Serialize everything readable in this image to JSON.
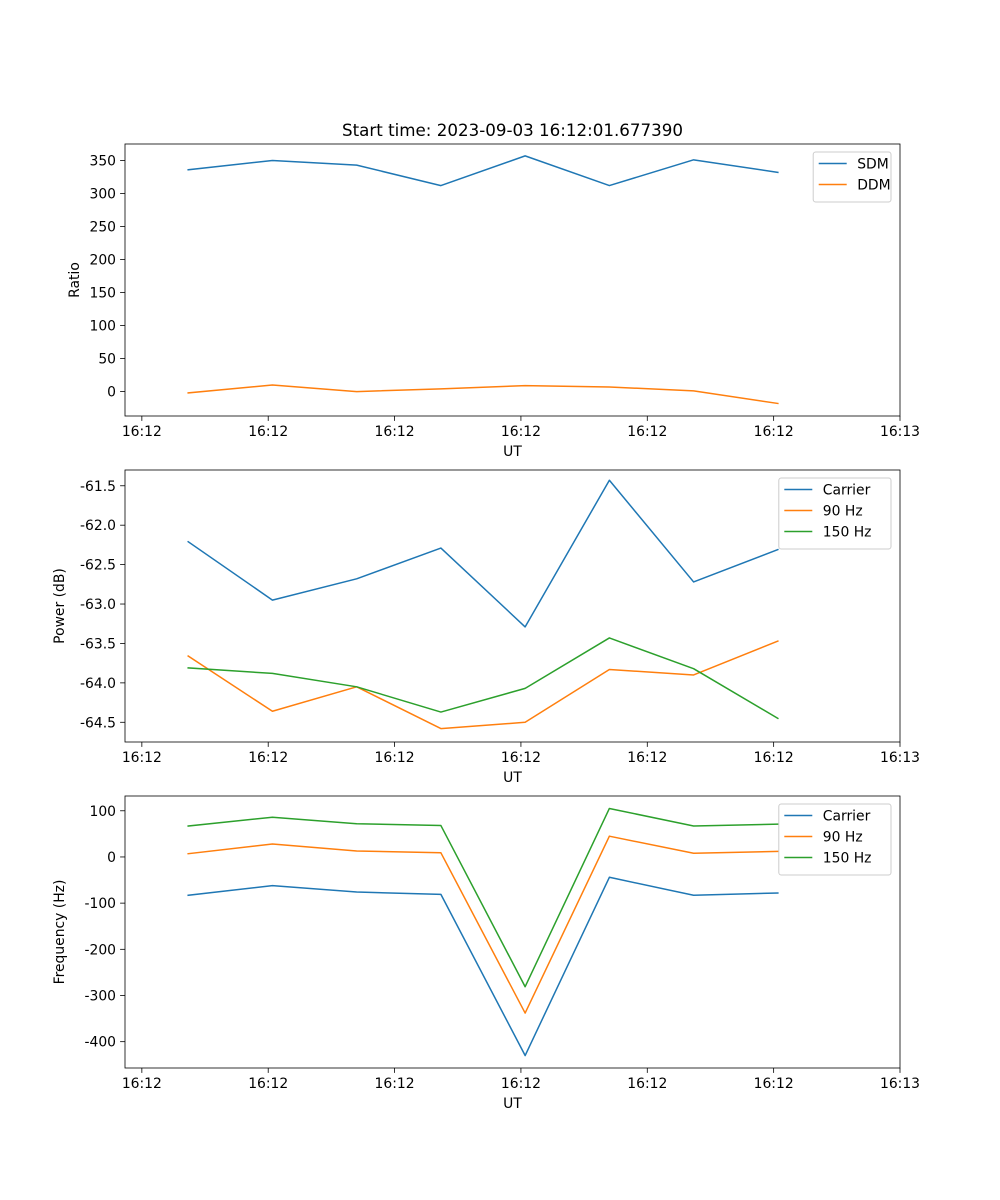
{
  "title": "Start time: 2023-09-03 16:12:01.677390",
  "colors": {
    "blue": "#1f77b4",
    "orange": "#ff7f0e",
    "green": "#2ca02c"
  },
  "chart_data": [
    {
      "type": "line",
      "title": "Start time: 2023-09-03 16:12:01.677390",
      "xlabel": "UT",
      "ylabel": "Ratio",
      "x": [
        0.75,
        1.75,
        2.75,
        3.75,
        4.75,
        5.75,
        6.75,
        7.75
      ],
      "xlim": [
        0,
        9.2
      ],
      "xticks": [
        0.2,
        1.7,
        3.2,
        4.7,
        6.2,
        7.7,
        9.2
      ],
      "xtick_labels": [
        "16:12",
        "16:12",
        "16:12",
        "16:12",
        "16:12",
        "16:12",
        "16:13"
      ],
      "ylim": [
        -37,
        375
      ],
      "yticks": [
        0,
        50,
        100,
        150,
        200,
        250,
        300,
        350
      ],
      "ytick_labels": [
        "0",
        "50",
        "100",
        "150",
        "200",
        "250",
        "300",
        "350"
      ],
      "legend": "top-right",
      "series": [
        {
          "name": "SDM",
          "color": "#1f77b4",
          "values": [
            336,
            350,
            343,
            312,
            357,
            312,
            351,
            332
          ]
        },
        {
          "name": "DDM",
          "color": "#ff7f0e",
          "values": [
            -2,
            10,
            0,
            4,
            9,
            7,
            1,
            -18
          ]
        }
      ]
    },
    {
      "type": "line",
      "xlabel": "UT",
      "ylabel": "Power (dB)",
      "x": [
        0.75,
        1.75,
        2.75,
        3.75,
        4.75,
        5.75,
        6.75,
        7.75
      ],
      "xlim": [
        0,
        9.2
      ],
      "xticks": [
        0.2,
        1.7,
        3.2,
        4.7,
        6.2,
        7.7,
        9.2
      ],
      "xtick_labels": [
        "16:12",
        "16:12",
        "16:12",
        "16:12",
        "16:12",
        "16:12",
        "16:13"
      ],
      "ylim": [
        -64.75,
        -61.3
      ],
      "yticks": [
        -64.5,
        -64.0,
        -63.5,
        -63.0,
        -62.5,
        -62.0,
        -61.5
      ],
      "ytick_labels": [
        "-64.5",
        "-64.0",
        "-63.5",
        "-63.0",
        "-62.5",
        "-62.0",
        "-61.5"
      ],
      "legend": "top-right",
      "series": [
        {
          "name": "Carrier",
          "color": "#1f77b4",
          "values": [
            -62.21,
            -62.95,
            -62.68,
            -62.29,
            -63.29,
            -61.43,
            -62.72,
            -62.31
          ]
        },
        {
          "name": "90 Hz",
          "color": "#ff7f0e",
          "values": [
            -63.66,
            -64.36,
            -64.05,
            -64.58,
            -64.5,
            -63.83,
            -63.9,
            -63.47
          ]
        },
        {
          "name": "150 Hz",
          "color": "#2ca02c",
          "values": [
            -63.81,
            -63.88,
            -64.05,
            -64.37,
            -64.07,
            -63.43,
            -63.82,
            -64.45
          ]
        }
      ]
    },
    {
      "type": "line",
      "xlabel": "UT",
      "ylabel": "Frequency (Hz)",
      "x": [
        0.75,
        1.75,
        2.75,
        3.75,
        4.75,
        5.75,
        6.75,
        7.75
      ],
      "xlim": [
        0,
        9.2
      ],
      "xticks": [
        0.2,
        1.7,
        3.2,
        4.7,
        6.2,
        7.7,
        9.2
      ],
      "xtick_labels": [
        "16:12",
        "16:12",
        "16:12",
        "16:12",
        "16:12",
        "16:12",
        "16:13"
      ],
      "ylim": [
        -457,
        132
      ],
      "yticks": [
        -400,
        -300,
        -200,
        -100,
        0,
        100
      ],
      "ytick_labels": [
        "-400",
        "-300",
        "-200",
        "-100",
        "0",
        "100"
      ],
      "legend": "top-right",
      "series": [
        {
          "name": "Carrier",
          "color": "#1f77b4",
          "values": [
            -83,
            -62,
            -76,
            -81,
            -430,
            -44,
            -83,
            -78
          ]
        },
        {
          "name": "90 Hz",
          "color": "#ff7f0e",
          "values": [
            7,
            28,
            13,
            9,
            -338,
            45,
            8,
            12
          ]
        },
        {
          "name": "150 Hz",
          "color": "#2ca02c",
          "values": [
            67,
            86,
            72,
            68,
            -281,
            105,
            67,
            71
          ]
        }
      ]
    }
  ]
}
